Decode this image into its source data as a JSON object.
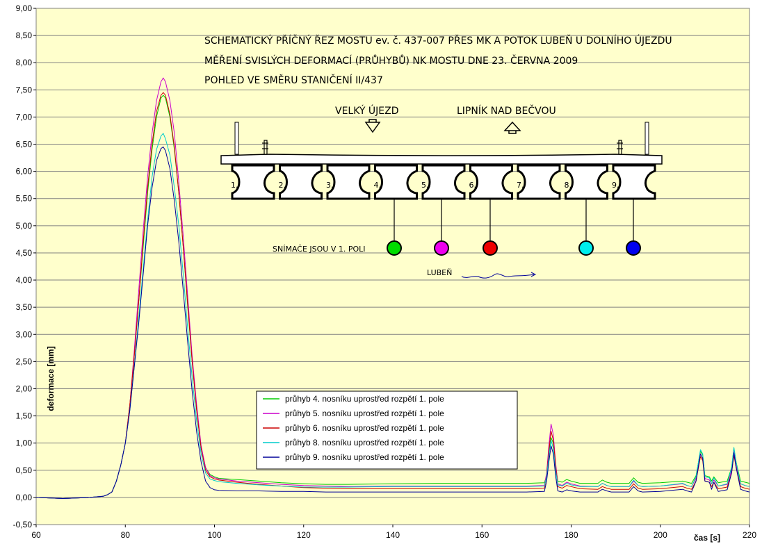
{
  "chart_data": {
    "type": "line",
    "xlabel": "čas [s]",
    "ylabel": "deformace [mm]",
    "xlim": [
      60,
      220
    ],
    "ylim": [
      -0.5,
      9.0
    ],
    "x_ticks": [
      "60",
      "80",
      "100",
      "120",
      "140",
      "160",
      "180",
      "200",
      "220"
    ],
    "y_ticks": [
      "-0,50",
      "0,00",
      "0,50",
      "1,00",
      "1,50",
      "2,00",
      "2,50",
      "3,00",
      "3,50",
      "4,00",
      "4,50",
      "5,00",
      "5,50",
      "6,00",
      "6,50",
      "7,00",
      "7,50",
      "8,00",
      "8,50",
      "9,00"
    ],
    "grid": "horizontal",
    "legend_position": "center-bottom",
    "background": "#ffffcc",
    "series": [
      {
        "name": "průhyb 4. nosníku uprostřed rozpětí 1. pole",
        "color": "#00cc00",
        "x": [
          60,
          66,
          72,
          75,
          76,
          77,
          78,
          79,
          80,
          81,
          82,
          83,
          84,
          85,
          86,
          87,
          88,
          88.5,
          89,
          90,
          91,
          92,
          93,
          94,
          95,
          96,
          97,
          98,
          99,
          100,
          101,
          105,
          110,
          115,
          120,
          125,
          130,
          140,
          150,
          160,
          170,
          174,
          174.5,
          175,
          175.5,
          176,
          176.5,
          177,
          178,
          179,
          180,
          182,
          186,
          187,
          188,
          189,
          190,
          193,
          194,
          195,
          196,
          200,
          205,
          206,
          207,
          208,
          209,
          209.5,
          210,
          211,
          211.5,
          212,
          213,
          215,
          216,
          216.5,
          217,
          218,
          219,
          220
        ],
        "y": [
          0.0,
          -0.02,
          0.0,
          0.02,
          0.05,
          0.1,
          0.3,
          0.6,
          1.0,
          1.7,
          2.6,
          3.6,
          4.6,
          5.6,
          6.4,
          7.0,
          7.35,
          7.4,
          7.35,
          7.0,
          6.4,
          5.6,
          4.6,
          3.5,
          2.5,
          1.6,
          0.9,
          0.55,
          0.42,
          0.38,
          0.35,
          0.33,
          0.3,
          0.27,
          0.25,
          0.24,
          0.24,
          0.25,
          0.26,
          0.26,
          0.26,
          0.27,
          0.4,
          0.8,
          1.1,
          1.0,
          0.6,
          0.3,
          0.28,
          0.33,
          0.3,
          0.26,
          0.26,
          0.32,
          0.28,
          0.26,
          0.26,
          0.26,
          0.36,
          0.28,
          0.26,
          0.27,
          0.3,
          0.28,
          0.26,
          0.4,
          0.85,
          0.78,
          0.4,
          0.38,
          0.3,
          0.38,
          0.27,
          0.3,
          0.55,
          0.9,
          0.65,
          0.3,
          0.28,
          0.26
        ]
      },
      {
        "name": "průhyb 5. nosníku uprostřed rozpětí 1. pole",
        "color": "#cc00cc",
        "x": [
          60,
          66,
          72,
          75,
          76,
          77,
          78,
          79,
          80,
          81,
          82,
          83,
          84,
          85,
          86,
          87,
          88,
          88.5,
          89,
          90,
          91,
          92,
          93,
          94,
          95,
          96,
          97,
          98,
          99,
          100,
          101,
          105,
          110,
          115,
          120,
          125,
          130,
          140,
          150,
          160,
          170,
          174,
          174.5,
          175,
          175.5,
          176,
          176.5,
          177,
          178,
          179,
          180,
          182,
          186,
          187,
          188,
          189,
          190,
          193,
          194,
          195,
          196,
          200,
          205,
          206,
          207,
          208,
          209,
          209.5,
          210,
          211,
          211.5,
          212,
          213,
          215,
          216,
          216.5,
          217,
          218,
          219,
          220
        ],
        "y": [
          0.0,
          -0.02,
          0.0,
          0.02,
          0.05,
          0.1,
          0.3,
          0.6,
          1.0,
          1.7,
          2.7,
          3.8,
          4.9,
          5.9,
          6.7,
          7.3,
          7.65,
          7.72,
          7.65,
          7.3,
          6.7,
          5.8,
          4.8,
          3.7,
          2.6,
          1.7,
          0.95,
          0.55,
          0.4,
          0.36,
          0.34,
          0.3,
          0.27,
          0.24,
          0.22,
          0.21,
          0.2,
          0.21,
          0.21,
          0.21,
          0.21,
          0.22,
          0.45,
          0.95,
          1.35,
          1.15,
          0.65,
          0.25,
          0.22,
          0.28,
          0.25,
          0.21,
          0.2,
          0.26,
          0.22,
          0.2,
          0.2,
          0.2,
          0.3,
          0.22,
          0.2,
          0.21,
          0.25,
          0.22,
          0.2,
          0.35,
          0.8,
          0.72,
          0.35,
          0.32,
          0.25,
          0.32,
          0.21,
          0.24,
          0.5,
          0.85,
          0.6,
          0.25,
          0.22,
          0.2
        ]
      },
      {
        "name": "průhyb 6. nosníku uprostřed rozpětí 1. pole",
        "color": "#cc0000",
        "x": [
          60,
          66,
          72,
          75,
          76,
          77,
          78,
          79,
          80,
          81,
          82,
          83,
          84,
          85,
          86,
          87,
          88,
          88.5,
          89,
          90,
          91,
          92,
          93,
          94,
          95,
          96,
          97,
          98,
          99,
          100,
          101,
          105,
          110,
          115,
          120,
          125,
          130,
          140,
          150,
          160,
          170,
          174,
          174.5,
          175,
          175.5,
          176,
          176.5,
          177,
          178,
          179,
          180,
          182,
          186,
          187,
          188,
          189,
          190,
          193,
          194,
          195,
          196,
          200,
          205,
          206,
          207,
          208,
          209,
          209.5,
          210,
          211,
          211.5,
          212,
          213,
          215,
          216,
          216.5,
          217,
          218,
          219,
          220
        ],
        "y": [
          0.0,
          -0.02,
          0.0,
          0.02,
          0.05,
          0.1,
          0.3,
          0.6,
          1.0,
          1.7,
          2.6,
          3.6,
          4.7,
          5.7,
          6.5,
          7.1,
          7.4,
          7.45,
          7.4,
          7.05,
          6.45,
          5.6,
          4.6,
          3.55,
          2.5,
          1.6,
          0.9,
          0.5,
          0.38,
          0.34,
          0.32,
          0.28,
          0.24,
          0.21,
          0.18,
          0.17,
          0.16,
          0.16,
          0.16,
          0.16,
          0.16,
          0.17,
          0.4,
          0.85,
          1.22,
          1.05,
          0.6,
          0.2,
          0.17,
          0.22,
          0.2,
          0.16,
          0.15,
          0.2,
          0.17,
          0.15,
          0.15,
          0.15,
          0.25,
          0.17,
          0.15,
          0.16,
          0.2,
          0.17,
          0.15,
          0.3,
          0.75,
          0.68,
          0.3,
          0.28,
          0.2,
          0.28,
          0.16,
          0.19,
          0.45,
          0.78,
          0.55,
          0.2,
          0.17,
          0.15
        ]
      },
      {
        "name": "průhyb 8. nosníku uprostřed rozpětí 1. pole",
        "color": "#00cccc",
        "x": [
          60,
          66,
          72,
          75,
          76,
          77,
          78,
          79,
          80,
          81,
          82,
          83,
          84,
          85,
          86,
          87,
          88,
          88.5,
          89,
          90,
          91,
          92,
          93,
          94,
          95,
          96,
          97,
          98,
          99,
          100,
          101,
          105,
          110,
          115,
          120,
          125,
          130,
          140,
          150,
          160,
          170,
          174,
          174.5,
          175,
          175.5,
          176,
          176.5,
          177,
          178,
          179,
          180,
          182,
          186,
          187,
          188,
          189,
          190,
          193,
          194,
          195,
          196,
          200,
          205,
          206,
          207,
          208,
          209,
          209.5,
          210,
          211,
          211.5,
          212,
          213,
          215,
          216,
          216.5,
          217,
          218,
          219,
          220
        ],
        "y": [
          0.0,
          -0.02,
          0.0,
          0.02,
          0.05,
          0.1,
          0.3,
          0.6,
          1.0,
          1.6,
          2.4,
          3.3,
          4.2,
          5.1,
          5.9,
          6.4,
          6.65,
          6.7,
          6.6,
          6.3,
          5.7,
          5.0,
          4.1,
          3.1,
          2.2,
          1.4,
          0.8,
          0.45,
          0.34,
          0.31,
          0.29,
          0.26,
          0.23,
          0.21,
          0.19,
          0.19,
          0.19,
          0.2,
          0.2,
          0.2,
          0.2,
          0.21,
          0.38,
          0.75,
          1.05,
          0.9,
          0.5,
          0.23,
          0.21,
          0.26,
          0.23,
          0.2,
          0.2,
          0.26,
          0.22,
          0.2,
          0.2,
          0.2,
          0.32,
          0.22,
          0.2,
          0.21,
          0.26,
          0.22,
          0.2,
          0.38,
          0.88,
          0.8,
          0.38,
          0.36,
          0.25,
          0.36,
          0.21,
          0.25,
          0.55,
          0.92,
          0.65,
          0.25,
          0.22,
          0.2
        ]
      },
      {
        "name": "průhyb 9. nosníku uprostřed rozpětí 1. pole",
        "color": "#000099",
        "x": [
          60,
          66,
          72,
          75,
          76,
          77,
          78,
          79,
          80,
          81,
          82,
          83,
          84,
          85,
          86,
          87,
          88,
          88.5,
          89,
          90,
          91,
          92,
          93,
          94,
          95,
          96,
          97,
          98,
          99,
          100,
          101,
          105,
          110,
          115,
          120,
          125,
          130,
          140,
          150,
          160,
          170,
          174,
          174.5,
          175,
          175.5,
          176,
          176.5,
          177,
          178,
          179,
          180,
          182,
          186,
          187,
          188,
          189,
          190,
          193,
          194,
          195,
          196,
          200,
          205,
          206,
          207,
          208,
          209,
          209.5,
          210,
          211,
          211.5,
          212,
          213,
          215,
          216,
          216.5,
          217,
          218,
          219,
          220
        ],
        "y": [
          0.0,
          -0.02,
          0.0,
          0.02,
          0.05,
          0.1,
          0.3,
          0.6,
          1.0,
          1.6,
          2.4,
          3.2,
          4.1,
          5.0,
          5.7,
          6.2,
          6.42,
          6.45,
          6.38,
          6.05,
          5.45,
          4.7,
          3.8,
          2.85,
          1.95,
          1.2,
          0.65,
          0.3,
          0.18,
          0.14,
          0.13,
          0.12,
          0.12,
          0.11,
          0.11,
          0.1,
          0.1,
          0.1,
          0.1,
          0.1,
          0.1,
          0.11,
          0.3,
          0.65,
          0.95,
          0.8,
          0.4,
          0.12,
          0.1,
          0.14,
          0.12,
          0.1,
          0.1,
          0.15,
          0.12,
          0.1,
          0.1,
          0.1,
          0.2,
          0.12,
          0.1,
          0.11,
          0.15,
          0.12,
          0.1,
          0.3,
          0.8,
          0.72,
          0.3,
          0.28,
          0.15,
          0.28,
          0.11,
          0.14,
          0.45,
          0.82,
          0.55,
          0.15,
          0.12,
          0.1
        ]
      }
    ],
    "annotations": {
      "title_lines": [
        "SCHEMATICKÝ PŘÍČNÝ ŘEZ MOSTU ev. č. 437-007 PŘES MK A POTOK LUBEŇ U DOLNÍHO ÚJEZDU",
        "MĚŘENÍ SVISLÝCH DEFORMACÍ (PRŮHYBŮ) NK MOSTU DNE 23. ČERVNA 2009",
        "POHLED VE SMĚRU STANIČENÍ II/437"
      ],
      "direction_left": "VELKÝ ÚJEZD",
      "direction_right": "LIPNÍK NAD BEČVOU",
      "beam_numbers": [
        "1.",
        "2.",
        "3.",
        "4.",
        "5.",
        "6.",
        "7.",
        "8.",
        "9."
      ],
      "sensor_note": "SNÍMAČE JSOU V 1. POLI",
      "river": "LUBEŇ",
      "sensor_colors": [
        "#00dd00",
        "#ee00ee",
        "#ee0000",
        "#00eeee",
        "#0000ee"
      ]
    }
  }
}
